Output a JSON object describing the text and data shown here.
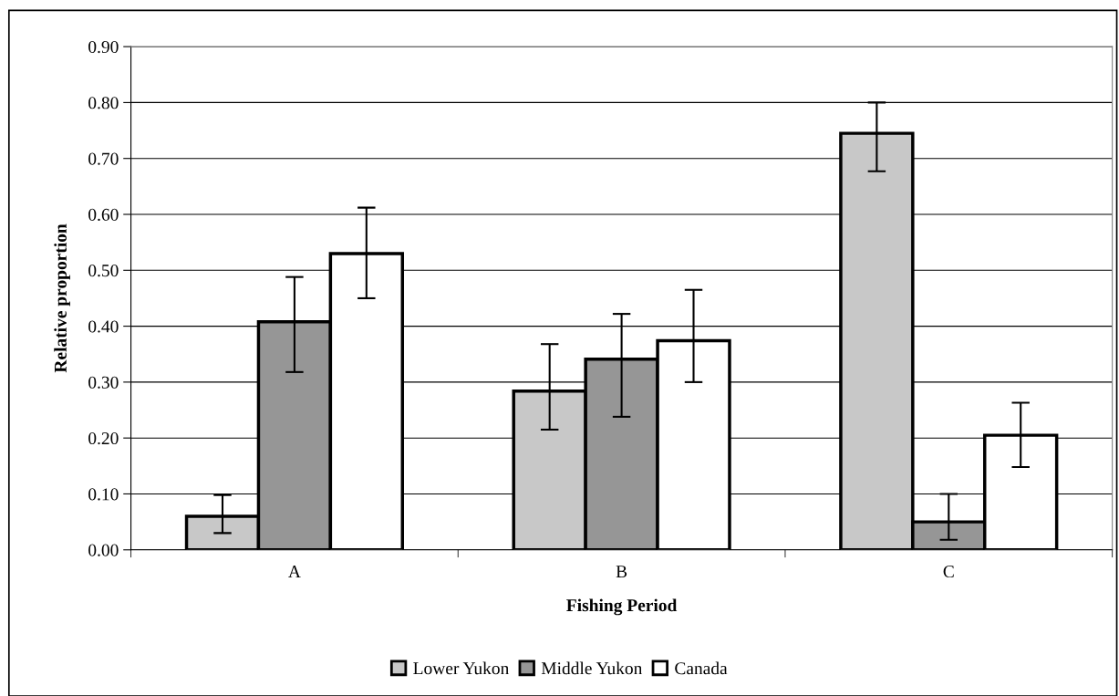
{
  "chart_data": {
    "type": "bar",
    "xlabel": "Fishing Period",
    "ylabel": "Relative proportion",
    "categories": [
      "A",
      "B",
      "C"
    ],
    "series": [
      {
        "name": "Lower Yukon",
        "color": "#c8c8c8",
        "values": [
          0.06,
          0.284,
          0.745
        ],
        "errors": [
          [
            0.03,
            0.098
          ],
          [
            0.215,
            0.368
          ],
          [
            0.677,
            0.8
          ]
        ]
      },
      {
        "name": "Middle Yukon",
        "color": "#969696",
        "values": [
          0.408,
          0.341,
          0.05
        ],
        "errors": [
          [
            0.318,
            0.488
          ],
          [
            0.238,
            0.422
          ],
          [
            0.018,
            0.1
          ]
        ]
      },
      {
        "name": "Canada",
        "color": "#ffffff",
        "values": [
          0.53,
          0.374,
          0.205
        ],
        "errors": [
          [
            0.45,
            0.612
          ],
          [
            0.3,
            0.465
          ],
          [
            0.148,
            0.263
          ]
        ]
      }
    ],
    "ylim": [
      0,
      0.9
    ],
    "yticks": [
      {
        "value": 0,
        "label": "0.00"
      },
      {
        "value": 0.1,
        "label": "0.10"
      },
      {
        "value": 0.2,
        "label": "0.20"
      },
      {
        "value": 0.3,
        "label": "0.30"
      },
      {
        "value": 0.4,
        "label": "0.40"
      },
      {
        "value": 0.5,
        "label": "0.50"
      },
      {
        "value": 0.6,
        "label": "0.60"
      },
      {
        "value": 0.7,
        "label": "0.70"
      },
      {
        "value": 0.8,
        "label": "0.80"
      },
      {
        "value": 0.9,
        "label": "0.90"
      }
    ],
    "grid": "y",
    "legend": "bottom"
  }
}
